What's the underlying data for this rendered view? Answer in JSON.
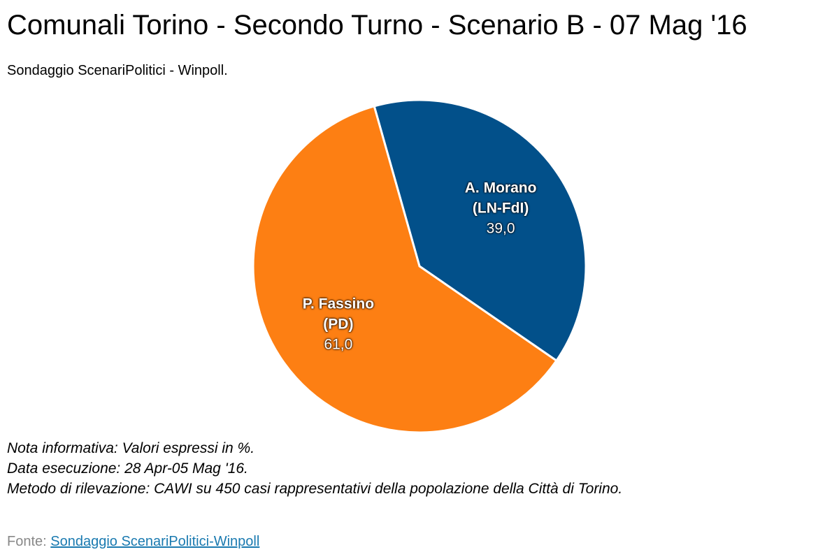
{
  "chart_data": {
    "type": "pie",
    "title": "Comunali Torino - Secondo Turno - Scenario B - 07 Mag '16",
    "subtitle": "Sondaggio ScenariPolitici - Winpoll.",
    "categories": [
      "A. Morano (LN-FdI)",
      "P. Fassino (PD)"
    ],
    "values": [
      39,
      61
    ],
    "value_labels": [
      "39,0",
      "61,0"
    ],
    "colors": [
      "#02508a",
      "#fd7f13"
    ],
    "notes": [
      "Nota informativa: Valori espressi in %.",
      "Data esecuzione: 28 Apr-05 Mag '16.",
      "Metodo di rilevazione: CAWI su 450 casi rappresentativi della popolazione della Città di Torino."
    ],
    "source_label": "Fonte:",
    "source_link": "Sondaggio ScenariPolitici-Winpoll"
  }
}
